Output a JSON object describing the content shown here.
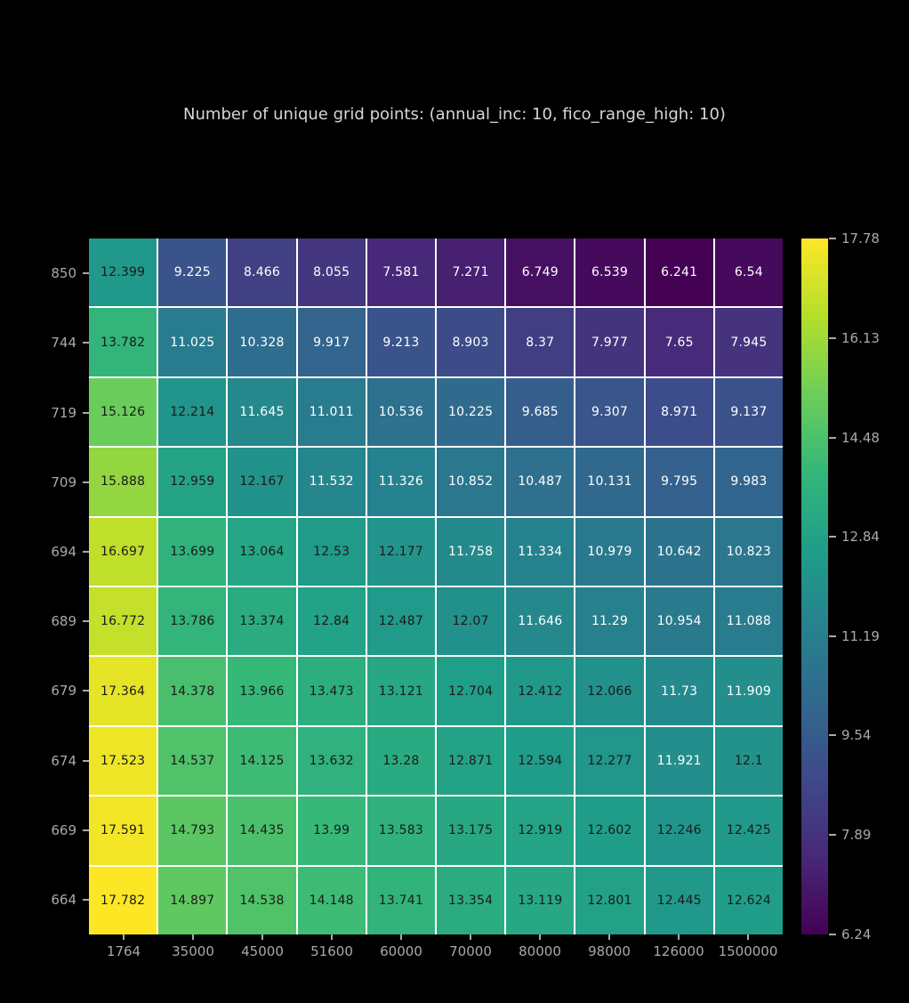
{
  "colors": {
    "background": "#000000",
    "title_text": "#d6d6d6",
    "tick_text": "#a9a9a9",
    "grid_line": "#ffffff",
    "annot_dark": "#1a1a1a",
    "annot_light": "#ffffff"
  },
  "chart_data": {
    "type": "heatmap",
    "title": "Number of unique grid points: (annual_inc: 10, fico_range_high: 10)",
    "xlabel": "",
    "ylabel": "",
    "x_tick_labels": [
      "1764",
      "35000",
      "45000",
      "51600",
      "60000",
      "70000",
      "80000",
      "98000",
      "126000",
      "1500000"
    ],
    "y_tick_labels": [
      "850",
      "744",
      "719",
      "709",
      "694",
      "689",
      "679",
      "674",
      "669",
      "664"
    ],
    "values": [
      [
        12.399,
        9.225,
        8.466,
        8.055,
        7.581,
        7.271,
        6.749,
        6.539,
        6.241,
        6.54
      ],
      [
        13.782,
        11.025,
        10.328,
        9.917,
        9.213,
        8.903,
        8.37,
        7.977,
        7.65,
        7.945
      ],
      [
        15.126,
        12.214,
        11.645,
        11.011,
        10.536,
        10.225,
        9.685,
        9.307,
        8.971,
        9.137
      ],
      [
        15.888,
        12.959,
        12.167,
        11.532,
        11.326,
        10.852,
        10.487,
        10.131,
        9.795,
        9.983
      ],
      [
        16.697,
        13.699,
        13.064,
        12.53,
        12.177,
        11.758,
        11.334,
        10.979,
        10.642,
        10.823
      ],
      [
        16.772,
        13.786,
        13.374,
        12.84,
        12.487,
        12.07,
        11.646,
        11.29,
        10.954,
        11.088
      ],
      [
        17.364,
        14.378,
        13.966,
        13.473,
        13.121,
        12.704,
        12.412,
        12.066,
        11.73,
        11.909
      ],
      [
        17.523,
        14.537,
        14.125,
        13.632,
        13.28,
        12.871,
        12.594,
        12.277,
        11.921,
        12.1
      ],
      [
        17.591,
        14.793,
        14.435,
        13.99,
        13.583,
        13.175,
        12.919,
        12.602,
        12.246,
        12.425
      ],
      [
        17.782,
        14.897,
        14.538,
        14.148,
        13.741,
        13.354,
        13.119,
        12.801,
        12.445,
        12.624
      ]
    ],
    "vmin": 6.241,
    "vmax": 17.782,
    "colormap": "viridis",
    "annotations": true,
    "grid": true,
    "legend": false,
    "colorbar": {
      "position": "right",
      "tick_labels": [
        "17.78",
        "16.13",
        "14.48",
        "12.84",
        "11.19",
        "9.54",
        "7.89",
        "6.24"
      ],
      "tick_values": [
        17.78,
        16.13,
        14.48,
        12.84,
        11.19,
        9.54,
        7.89,
        6.24
      ]
    },
    "viridis_stops": [
      [
        68,
        1,
        84
      ],
      [
        72,
        40,
        120
      ],
      [
        62,
        73,
        137
      ],
      [
        49,
        104,
        142
      ],
      [
        38,
        130,
        142
      ],
      [
        31,
        158,
        137
      ],
      [
        53,
        183,
        121
      ],
      [
        110,
        206,
        88
      ],
      [
        181,
        222,
        43
      ],
      [
        253,
        231,
        37
      ]
    ]
  }
}
